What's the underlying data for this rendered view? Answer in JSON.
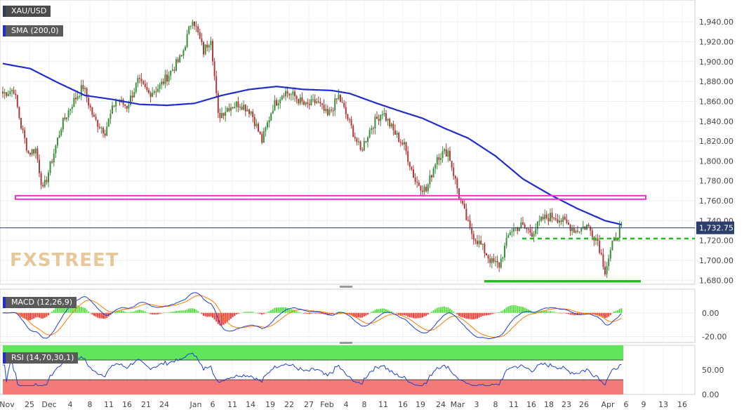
{
  "panels": {
    "main_label": "XAU/USD",
    "sma_label": "SMA (200,0)",
    "macd_label": "MACD (12,26,9)",
    "rsi_label": "RSI (14,70,30,1)"
  },
  "watermark": "FXSTREET",
  "price_label": "1,732.75",
  "colors": {
    "bull": "#3a8f3a",
    "bear": "#b03a3a",
    "sma": "#1f2ecf",
    "resistance": "#ff2bd6",
    "support": "#22c01e",
    "macd_line": "#1f3fcf",
    "signal_line": "#ff7a00",
    "hist_pos": "#55e040",
    "hist_neg": "#ff3b30",
    "rsi_line": "#1f3fcf",
    "overbought": "#5fe65a",
    "oversold": "#f47a78"
  },
  "chart_data": {
    "type": "candlestick",
    "symbol": "XAU/USD",
    "price_axis": {
      "ylim": [
        1676,
        1962
      ],
      "ticks": [
        1680,
        1700,
        1720,
        1740,
        1760,
        1780,
        1800,
        1820,
        1840,
        1860,
        1880,
        1900,
        1920,
        1940
      ],
      "tick_labels": [
        "1,680.00",
        "1,700.00",
        "1,720.00",
        "1,740.00",
        "1,760.00",
        "1,780.00",
        "1,800.00",
        "1,820.00",
        "1,840.00",
        "1,860.00",
        "1,880.00",
        "1,900.00",
        "1,920.00",
        "1,940.00"
      ]
    },
    "x_labels": [
      "Nov",
      "25",
      "Dec",
      "4",
      "8",
      "11",
      "16",
      "21",
      "24",
      "Jan",
      "6",
      "11",
      "14",
      "19",
      "22",
      "27",
      "Feb",
      "4",
      "8",
      "11",
      "16",
      "19",
      "24",
      "Mar",
      "3",
      "8",
      "11",
      "16",
      "18",
      "23",
      "26",
      "Apr",
      "6",
      "9",
      "13",
      "16"
    ],
    "close_path": [
      {
        "i": 0,
        "p": 1868
      },
      {
        "i": 6,
        "p": 1872
      },
      {
        "i": 10,
        "p": 1835
      },
      {
        "i": 14,
        "p": 1808
      },
      {
        "i": 18,
        "p": 1812
      },
      {
        "i": 22,
        "p": 1770
      },
      {
        "i": 26,
        "p": 1795
      },
      {
        "i": 32,
        "p": 1835
      },
      {
        "i": 38,
        "p": 1858
      },
      {
        "i": 44,
        "p": 1875
      },
      {
        "i": 50,
        "p": 1842
      },
      {
        "i": 56,
        "p": 1830
      },
      {
        "i": 62,
        "p": 1862
      },
      {
        "i": 68,
        "p": 1855
      },
      {
        "i": 74,
        "p": 1880
      },
      {
        "i": 80,
        "p": 1868
      },
      {
        "i": 86,
        "p": 1875
      },
      {
        "i": 92,
        "p": 1890
      },
      {
        "i": 98,
        "p": 1905
      },
      {
        "i": 104,
        "p": 1945
      },
      {
        "i": 110,
        "p": 1910
      },
      {
        "i": 114,
        "p": 1925
      },
      {
        "i": 118,
        "p": 1845
      },
      {
        "i": 124,
        "p": 1855
      },
      {
        "i": 130,
        "p": 1858
      },
      {
        "i": 136,
        "p": 1850
      },
      {
        "i": 142,
        "p": 1820
      },
      {
        "i": 148,
        "p": 1855
      },
      {
        "i": 154,
        "p": 1870
      },
      {
        "i": 160,
        "p": 1865
      },
      {
        "i": 166,
        "p": 1855
      },
      {
        "i": 172,
        "p": 1860
      },
      {
        "i": 178,
        "p": 1845
      },
      {
        "i": 184,
        "p": 1865
      },
      {
        "i": 190,
        "p": 1838
      },
      {
        "i": 196,
        "p": 1810
      },
      {
        "i": 202,
        "p": 1835
      },
      {
        "i": 208,
        "p": 1850
      },
      {
        "i": 214,
        "p": 1830
      },
      {
        "i": 220,
        "p": 1815
      },
      {
        "i": 226,
        "p": 1780
      },
      {
        "i": 232,
        "p": 1770
      },
      {
        "i": 238,
        "p": 1805
      },
      {
        "i": 244,
        "p": 1810
      },
      {
        "i": 250,
        "p": 1765
      },
      {
        "i": 256,
        "p": 1730
      },
      {
        "i": 262,
        "p": 1715
      },
      {
        "i": 268,
        "p": 1698
      },
      {
        "i": 272,
        "p": 1695
      },
      {
        "i": 278,
        "p": 1730
      },
      {
        "i": 284,
        "p": 1735
      },
      {
        "i": 290,
        "p": 1728
      },
      {
        "i": 296,
        "p": 1742
      },
      {
        "i": 302,
        "p": 1745
      },
      {
        "i": 308,
        "p": 1738
      },
      {
        "i": 314,
        "p": 1730
      },
      {
        "i": 320,
        "p": 1735
      },
      {
        "i": 326,
        "p": 1720
      },
      {
        "i": 330,
        "p": 1690
      },
      {
        "i": 334,
        "p": 1715
      },
      {
        "i": 339,
        "p": 1736
      }
    ],
    "sma200": [
      {
        "i": 0,
        "p": 1898
      },
      {
        "i": 15,
        "p": 1893
      },
      {
        "i": 30,
        "p": 1879
      },
      {
        "i": 45,
        "p": 1866
      },
      {
        "i": 60,
        "p": 1862
      },
      {
        "i": 75,
        "p": 1857
      },
      {
        "i": 90,
        "p": 1856
      },
      {
        "i": 105,
        "p": 1858
      },
      {
        "i": 120,
        "p": 1866
      },
      {
        "i": 135,
        "p": 1872
      },
      {
        "i": 150,
        "p": 1875
      },
      {
        "i": 165,
        "p": 1872
      },
      {
        "i": 180,
        "p": 1871
      },
      {
        "i": 190,
        "p": 1868
      },
      {
        "i": 205,
        "p": 1858
      },
      {
        "i": 218,
        "p": 1850
      },
      {
        "i": 230,
        "p": 1843
      },
      {
        "i": 242,
        "p": 1833
      },
      {
        "i": 255,
        "p": 1823
      },
      {
        "i": 270,
        "p": 1805
      },
      {
        "i": 285,
        "p": 1782
      },
      {
        "i": 300,
        "p": 1766
      },
      {
        "i": 315,
        "p": 1752
      },
      {
        "i": 330,
        "p": 1740
      },
      {
        "i": 339,
        "p": 1736
      }
    ],
    "levels": {
      "resistance": 1763,
      "support_mid": 1722,
      "support_low": 1679
    },
    "macd": {
      "ylim": [
        -25,
        20
      ],
      "ticks": [
        0,
        -20
      ],
      "tick_labels": [
        "0.00",
        "-20.00"
      ]
    },
    "rsi": {
      "ylim": [
        0,
        100
      ],
      "overbought": 70,
      "oversold": 30,
      "ticks": [
        50,
        0
      ],
      "tick_labels": [
        "50.00",
        "0.00"
      ]
    }
  }
}
